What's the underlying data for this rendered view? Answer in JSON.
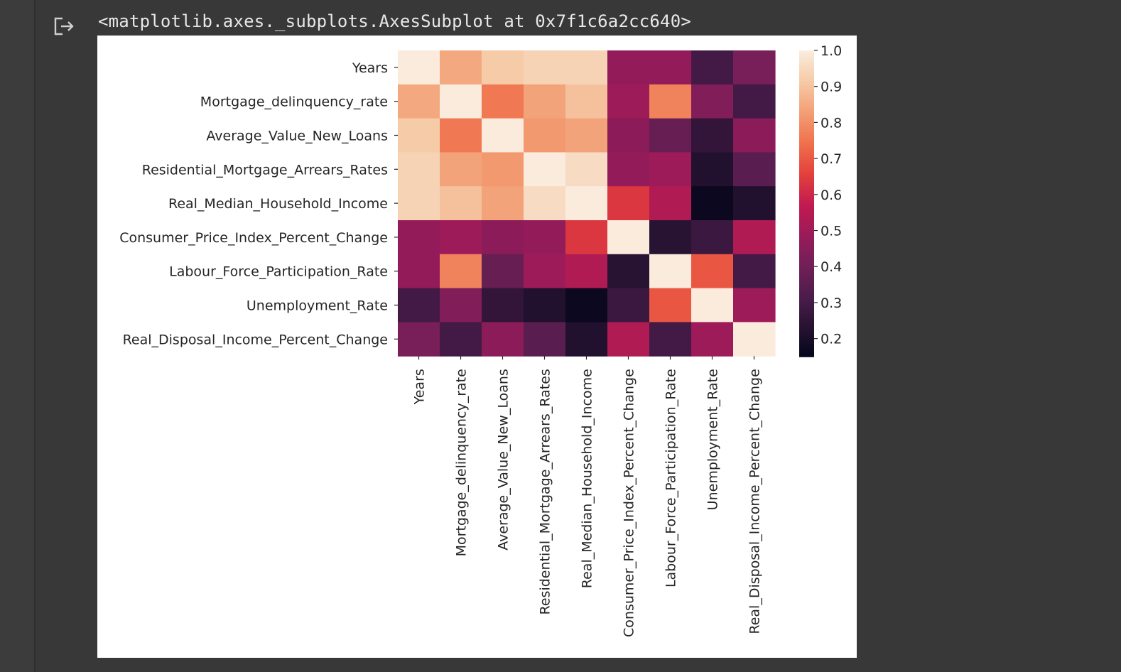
{
  "output": {
    "repr": "<matplotlib.axes._subplots.AxesSubplot at 0x7f1c6a2cc640>"
  },
  "chart_data": {
    "type": "heatmap",
    "title": "",
    "xlabel": "",
    "ylabel": "",
    "variables": [
      "Years",
      "Mortgage_delinquency_rate",
      "Average_Value_New_Loans",
      "Residential_Mortgage_Arrears_Rates",
      "Real_Median_Household_Income",
      "Consumer_Price_Index_Percent_Change",
      "Labour_Force_Participation_Rate",
      "Unemployment_Rate",
      "Real_Disposal_Income_Percent_Change"
    ],
    "matrix": [
      [
        1.0,
        0.85,
        0.92,
        0.94,
        0.94,
        0.48,
        0.48,
        0.3,
        0.42
      ],
      [
        0.85,
        1.0,
        0.76,
        0.84,
        0.9,
        0.5,
        0.78,
        0.44,
        0.3
      ],
      [
        0.92,
        0.76,
        1.0,
        0.82,
        0.84,
        0.46,
        0.38,
        0.26,
        0.46
      ],
      [
        0.94,
        0.84,
        0.82,
        1.0,
        0.96,
        0.48,
        0.5,
        0.22,
        0.35
      ],
      [
        0.94,
        0.9,
        0.84,
        0.96,
        1.0,
        0.64,
        0.54,
        0.17,
        0.22
      ],
      [
        0.48,
        0.5,
        0.46,
        0.48,
        0.64,
        1.0,
        0.24,
        0.28,
        0.54
      ],
      [
        0.48,
        0.78,
        0.38,
        0.5,
        0.54,
        0.24,
        1.0,
        0.7,
        0.3
      ],
      [
        0.3,
        0.44,
        0.26,
        0.22,
        0.17,
        0.28,
        0.7,
        1.0,
        0.5
      ],
      [
        0.42,
        0.3,
        0.46,
        0.35,
        0.22,
        0.54,
        0.3,
        0.5,
        1.0
      ]
    ],
    "colormap": "rocket",
    "colorbar": {
      "min": 0.15,
      "max": 1.0,
      "ticks": [
        1.0,
        0.9,
        0.8,
        0.7,
        0.6,
        0.5,
        0.4,
        0.3,
        0.2
      ],
      "tick_labels": [
        "1.0",
        "0.9",
        "0.8",
        "0.7",
        "0.6",
        "0.5",
        "0.4",
        "0.3",
        "0.2"
      ]
    }
  }
}
